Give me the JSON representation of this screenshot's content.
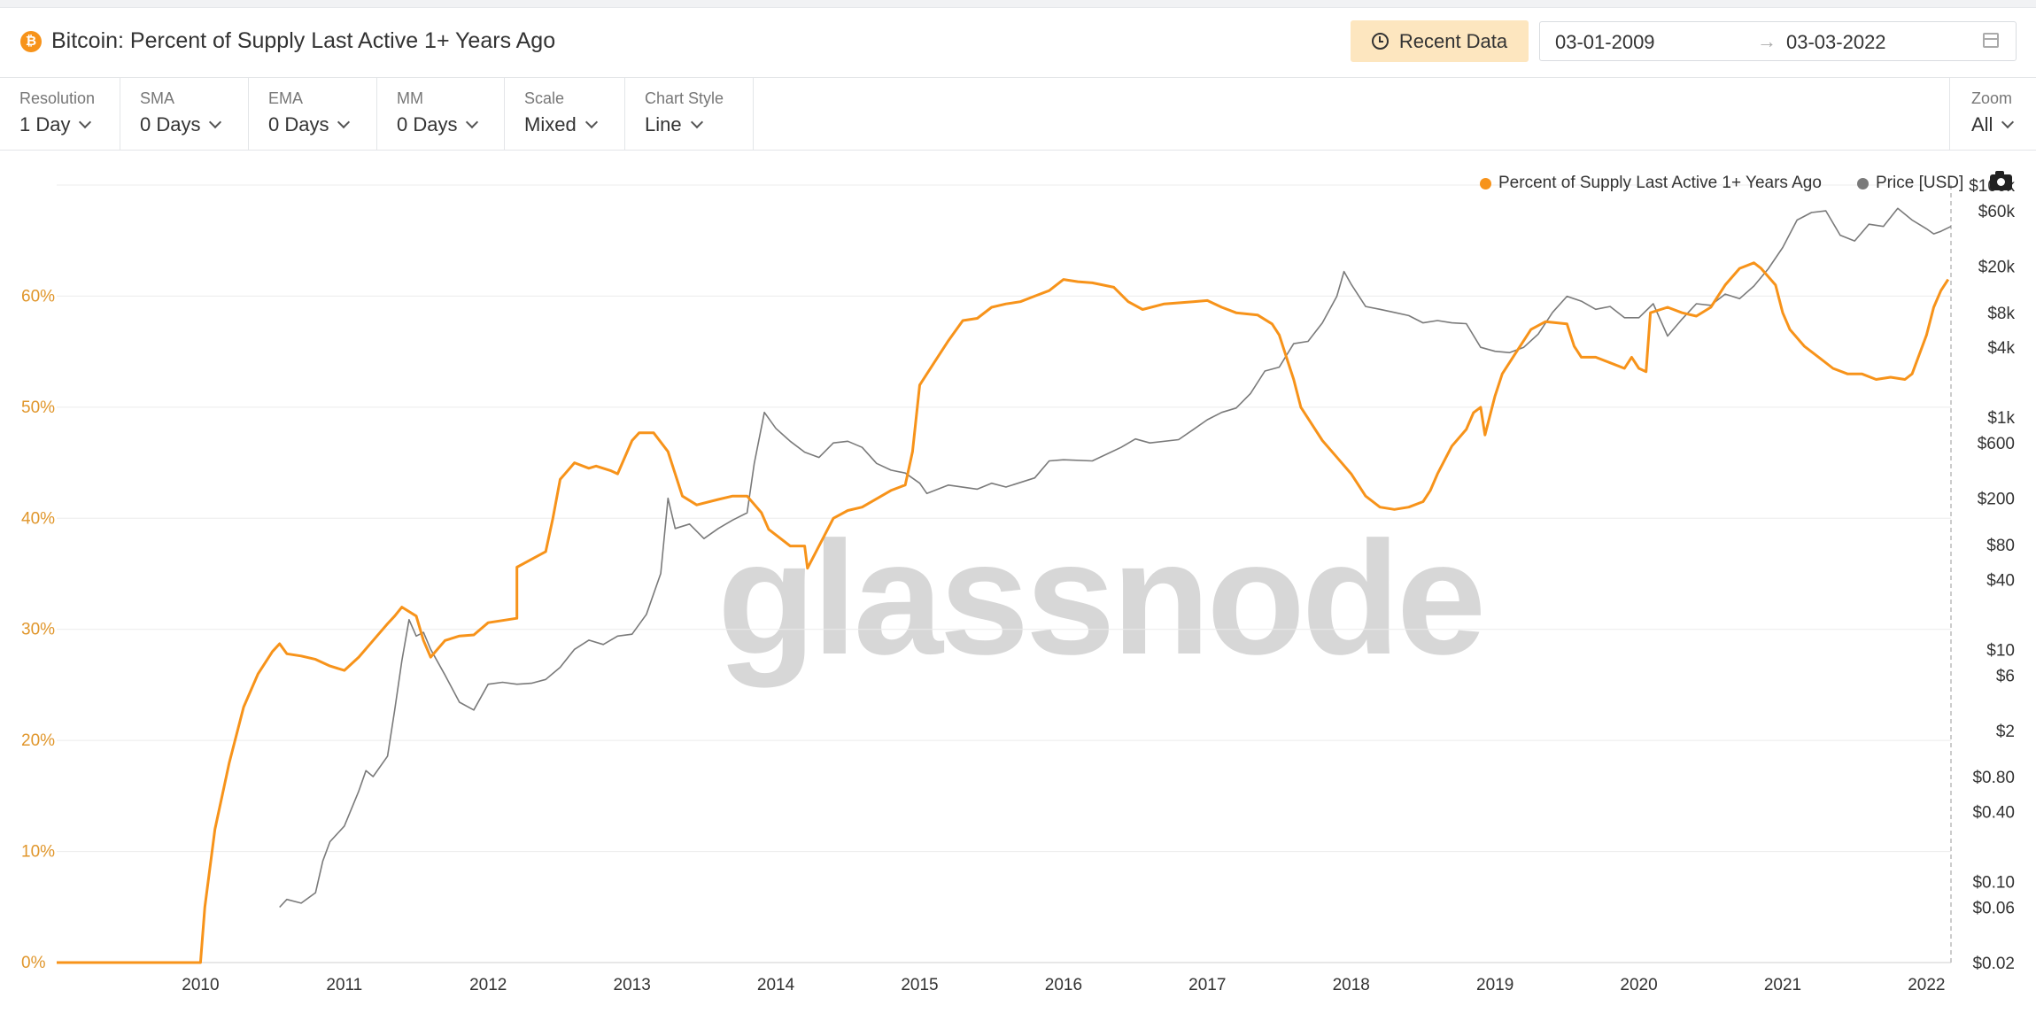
{
  "header": {
    "title": "Bitcoin: Percent of Supply Last Active 1+ Years Ago",
    "recent_data_label": "Recent Data",
    "date_from": "03-01-2009",
    "date_arrow": "→",
    "date_to": "03-03-2022",
    "coin_symbol": "₿"
  },
  "toolbar": {
    "controls": [
      {
        "label": "Resolution",
        "value": "1 Day"
      },
      {
        "label": "SMA",
        "value": "0 Days"
      },
      {
        "label": "EMA",
        "value": "0 Days"
      },
      {
        "label": "MM",
        "value": "0 Days"
      },
      {
        "label": "Scale",
        "value": "Mixed"
      },
      {
        "label": "Chart Style",
        "value": "Line"
      }
    ],
    "zoom": {
      "label": "Zoom",
      "value": "All"
    }
  },
  "watermark": "glassnode",
  "icons": [
    "bitcoin-icon",
    "clock-icon",
    "calendar-icon",
    "chevron-down-icon",
    "camera-icon"
  ],
  "colors": {
    "supply": "#f7931a",
    "price": "#7a7a7a",
    "percent_axis": "#e0962b"
  },
  "chart_data": {
    "type": "line",
    "x_tick_labels": [
      "2010",
      "2011",
      "2012",
      "2013",
      "2014",
      "2015",
      "2016",
      "2017",
      "2018",
      "2019",
      "2020",
      "2021",
      "2022"
    ],
    "xlim": [
      2009.0,
      2022.17
    ],
    "y_left": {
      "tick_labels": [
        "0%",
        "10%",
        "20%",
        "30%",
        "40%",
        "50%",
        "60%"
      ],
      "ylim": [
        0,
        70
      ]
    },
    "y_right": {
      "scale": "log",
      "tick_labels": [
        "$100k",
        "$60k",
        "$20k",
        "$8k",
        "$4k",
        "$1k",
        "$600",
        "$200",
        "$80",
        "$40",
        "$10",
        "$6",
        "$2",
        "$0.80",
        "$0.40",
        "$0.10",
        "$0.06",
        "$0.02"
      ],
      "ylim": [
        0.02,
        100000
      ]
    },
    "grid": true,
    "legend_position": "top-right",
    "series": [
      {
        "name": "Percent of Supply Last Active 1+ Years Ago",
        "axis": "left",
        "points": [
          [
            2009.0,
            0
          ],
          [
            2010.0,
            0
          ],
          [
            2010.03,
            5
          ],
          [
            2010.1,
            12
          ],
          [
            2010.2,
            18
          ],
          [
            2010.3,
            23
          ],
          [
            2010.4,
            26
          ],
          [
            2010.5,
            28
          ],
          [
            2010.55,
            28.7
          ],
          [
            2010.6,
            27.8
          ],
          [
            2010.7,
            27.6
          ],
          [
            2010.8,
            27.3
          ],
          [
            2010.9,
            26.7
          ],
          [
            2011.0,
            26.3
          ],
          [
            2011.1,
            27.5
          ],
          [
            2011.2,
            29
          ],
          [
            2011.3,
            30.5
          ],
          [
            2011.35,
            31.2
          ],
          [
            2011.4,
            32
          ],
          [
            2011.5,
            31.2
          ],
          [
            2011.55,
            29
          ],
          [
            2011.6,
            27.5
          ],
          [
            2011.7,
            29
          ],
          [
            2011.8,
            29.4
          ],
          [
            2011.9,
            29.5
          ],
          [
            2012.0,
            30.6
          ],
          [
            2012.1,
            30.8
          ],
          [
            2012.2,
            31
          ],
          [
            2012.2,
            35.6
          ],
          [
            2012.3,
            36.3
          ],
          [
            2012.4,
            37
          ],
          [
            2012.45,
            40
          ],
          [
            2012.5,
            43.5
          ],
          [
            2012.6,
            45
          ],
          [
            2012.7,
            44.5
          ],
          [
            2012.75,
            44.7
          ],
          [
            2012.85,
            44.3
          ],
          [
            2012.9,
            44
          ],
          [
            2013.0,
            47
          ],
          [
            2013.05,
            47.7
          ],
          [
            2013.15,
            47.7
          ],
          [
            2013.25,
            46
          ],
          [
            2013.3,
            44
          ],
          [
            2013.35,
            42
          ],
          [
            2013.45,
            41.2
          ],
          [
            2013.6,
            41.7
          ],
          [
            2013.7,
            42
          ],
          [
            2013.8,
            42
          ],
          [
            2013.9,
            40.5
          ],
          [
            2013.95,
            39
          ],
          [
            2014.0,
            38.5
          ],
          [
            2014.1,
            37.5
          ],
          [
            2014.2,
            37.5
          ],
          [
            2014.22,
            35.5
          ],
          [
            2014.3,
            37.5
          ],
          [
            2014.4,
            40
          ],
          [
            2014.5,
            40.7
          ],
          [
            2014.6,
            41
          ],
          [
            2014.8,
            42.5
          ],
          [
            2014.9,
            43
          ],
          [
            2014.95,
            46
          ],
          [
            2015.0,
            52
          ],
          [
            2015.1,
            54
          ],
          [
            2015.2,
            56
          ],
          [
            2015.3,
            57.8
          ],
          [
            2015.4,
            58
          ],
          [
            2015.5,
            59
          ],
          [
            2015.6,
            59.3
          ],
          [
            2015.7,
            59.5
          ],
          [
            2015.8,
            60
          ],
          [
            2015.9,
            60.5
          ],
          [
            2016.0,
            61.5
          ],
          [
            2016.1,
            61.3
          ],
          [
            2016.2,
            61.2
          ],
          [
            2016.35,
            60.8
          ],
          [
            2016.45,
            59.5
          ],
          [
            2016.55,
            58.8
          ],
          [
            2016.7,
            59.3
          ],
          [
            2016.9,
            59.5
          ],
          [
            2017.0,
            59.6
          ],
          [
            2017.1,
            59
          ],
          [
            2017.2,
            58.5
          ],
          [
            2017.35,
            58.3
          ],
          [
            2017.45,
            57.5
          ],
          [
            2017.5,
            56.5
          ],
          [
            2017.55,
            54.5
          ],
          [
            2017.6,
            52.5
          ],
          [
            2017.65,
            50
          ],
          [
            2017.7,
            49
          ],
          [
            2017.8,
            47
          ],
          [
            2017.9,
            45.5
          ],
          [
            2018.0,
            44
          ],
          [
            2018.1,
            42
          ],
          [
            2018.2,
            41
          ],
          [
            2018.3,
            40.8
          ],
          [
            2018.4,
            41
          ],
          [
            2018.5,
            41.5
          ],
          [
            2018.55,
            42.5
          ],
          [
            2018.6,
            44
          ],
          [
            2018.7,
            46.5
          ],
          [
            2018.8,
            48
          ],
          [
            2018.85,
            49.5
          ],
          [
            2018.9,
            50
          ],
          [
            2018.93,
            47.5
          ],
          [
            2019.0,
            51
          ],
          [
            2019.05,
            53
          ],
          [
            2019.15,
            55
          ],
          [
            2019.25,
            57
          ],
          [
            2019.35,
            57.7
          ],
          [
            2019.5,
            57.5
          ],
          [
            2019.55,
            55.5
          ],
          [
            2019.6,
            54.5
          ],
          [
            2019.7,
            54.5
          ],
          [
            2019.8,
            54
          ],
          [
            2019.9,
            53.5
          ],
          [
            2019.95,
            54.5
          ],
          [
            2020.0,
            53.5
          ],
          [
            2020.05,
            53.2
          ],
          [
            2020.08,
            58.5
          ],
          [
            2020.2,
            59
          ],
          [
            2020.3,
            58.5
          ],
          [
            2020.4,
            58.2
          ],
          [
            2020.5,
            59
          ],
          [
            2020.6,
            61
          ],
          [
            2020.7,
            62.5
          ],
          [
            2020.8,
            63
          ],
          [
            2020.85,
            62.5
          ],
          [
            2020.95,
            61
          ],
          [
            2021.0,
            58.5
          ],
          [
            2021.05,
            57
          ],
          [
            2021.15,
            55.5
          ],
          [
            2021.25,
            54.5
          ],
          [
            2021.35,
            53.5
          ],
          [
            2021.45,
            53
          ],
          [
            2021.55,
            53
          ],
          [
            2021.65,
            52.5
          ],
          [
            2021.75,
            52.7
          ],
          [
            2021.85,
            52.5
          ],
          [
            2021.9,
            53
          ],
          [
            2022.0,
            56.5
          ],
          [
            2022.05,
            59
          ],
          [
            2022.1,
            60.5
          ],
          [
            2022.15,
            61.5
          ]
        ]
      },
      {
        "name": "Price [USD]",
        "axis": "right",
        "points": [
          [
            2010.55,
            0.06
          ],
          [
            2010.6,
            0.07
          ],
          [
            2010.7,
            0.065
          ],
          [
            2010.8,
            0.08
          ],
          [
            2010.85,
            0.15
          ],
          [
            2010.9,
            0.22
          ],
          [
            2011.0,
            0.3
          ],
          [
            2011.1,
            0.6
          ],
          [
            2011.15,
            0.9
          ],
          [
            2011.2,
            0.8
          ],
          [
            2011.3,
            1.2
          ],
          [
            2011.35,
            3
          ],
          [
            2011.4,
            8
          ],
          [
            2011.45,
            18
          ],
          [
            2011.5,
            13
          ],
          [
            2011.55,
            14
          ],
          [
            2011.6,
            10
          ],
          [
            2011.7,
            6
          ],
          [
            2011.8,
            3.5
          ],
          [
            2011.9,
            3
          ],
          [
            2012.0,
            5
          ],
          [
            2012.1,
            5.2
          ],
          [
            2012.2,
            5
          ],
          [
            2012.3,
            5.1
          ],
          [
            2012.4,
            5.5
          ],
          [
            2012.5,
            7
          ],
          [
            2012.6,
            10
          ],
          [
            2012.7,
            12
          ],
          [
            2012.8,
            11
          ],
          [
            2012.9,
            13
          ],
          [
            2013.0,
            13.5
          ],
          [
            2013.1,
            20
          ],
          [
            2013.2,
            45
          ],
          [
            2013.25,
            200
          ],
          [
            2013.3,
            110
          ],
          [
            2013.4,
            120
          ],
          [
            2013.5,
            90
          ],
          [
            2013.6,
            110
          ],
          [
            2013.7,
            130
          ],
          [
            2013.8,
            150
          ],
          [
            2013.85,
            400
          ],
          [
            2013.92,
            1100
          ],
          [
            2014.0,
            800
          ],
          [
            2014.1,
            620
          ],
          [
            2014.2,
            500
          ],
          [
            2014.3,
            450
          ],
          [
            2014.4,
            600
          ],
          [
            2014.5,
            620
          ],
          [
            2014.6,
            550
          ],
          [
            2014.7,
            400
          ],
          [
            2014.8,
            350
          ],
          [
            2014.9,
            330
          ],
          [
            2015.0,
            270
          ],
          [
            2015.05,
            220
          ],
          [
            2015.2,
            260
          ],
          [
            2015.4,
            240
          ],
          [
            2015.5,
            270
          ],
          [
            2015.6,
            250
          ],
          [
            2015.8,
            300
          ],
          [
            2015.9,
            420
          ],
          [
            2016.0,
            430
          ],
          [
            2016.2,
            420
          ],
          [
            2016.4,
            550
          ],
          [
            2016.5,
            650
          ],
          [
            2016.6,
            600
          ],
          [
            2016.8,
            640
          ],
          [
            2016.9,
            780
          ],
          [
            2017.0,
            950
          ],
          [
            2017.1,
            1100
          ],
          [
            2017.2,
            1200
          ],
          [
            2017.3,
            1600
          ],
          [
            2017.4,
            2500
          ],
          [
            2017.5,
            2700
          ],
          [
            2017.6,
            4300
          ],
          [
            2017.7,
            4500
          ],
          [
            2017.8,
            6500
          ],
          [
            2017.9,
            11000
          ],
          [
            2017.95,
            18000
          ],
          [
            2018.0,
            14000
          ],
          [
            2018.1,
            9000
          ],
          [
            2018.2,
            8500
          ],
          [
            2018.3,
            8000
          ],
          [
            2018.4,
            7500
          ],
          [
            2018.5,
            6500
          ],
          [
            2018.6,
            6800
          ],
          [
            2018.7,
            6500
          ],
          [
            2018.8,
            6400
          ],
          [
            2018.9,
            4000
          ],
          [
            2019.0,
            3700
          ],
          [
            2019.1,
            3600
          ],
          [
            2019.2,
            4000
          ],
          [
            2019.3,
            5200
          ],
          [
            2019.4,
            8000
          ],
          [
            2019.5,
            11000
          ],
          [
            2019.6,
            10000
          ],
          [
            2019.7,
            8500
          ],
          [
            2019.8,
            9000
          ],
          [
            2019.9,
            7200
          ],
          [
            2020.0,
            7200
          ],
          [
            2020.1,
            9500
          ],
          [
            2020.2,
            5000
          ],
          [
            2020.3,
            7000
          ],
          [
            2020.4,
            9500
          ],
          [
            2020.5,
            9200
          ],
          [
            2020.6,
            11500
          ],
          [
            2020.7,
            10500
          ],
          [
            2020.8,
            13500
          ],
          [
            2020.9,
            19000
          ],
          [
            2021.0,
            29000
          ],
          [
            2021.1,
            50000
          ],
          [
            2021.2,
            58000
          ],
          [
            2021.3,
            60000
          ],
          [
            2021.4,
            37000
          ],
          [
            2021.5,
            33000
          ],
          [
            2021.6,
            46000
          ],
          [
            2021.7,
            44000
          ],
          [
            2021.8,
            63000
          ],
          [
            2021.9,
            50000
          ],
          [
            2022.0,
            42000
          ],
          [
            2022.05,
            38000
          ],
          [
            2022.1,
            40000
          ],
          [
            2022.17,
            44000
          ]
        ]
      }
    ]
  }
}
